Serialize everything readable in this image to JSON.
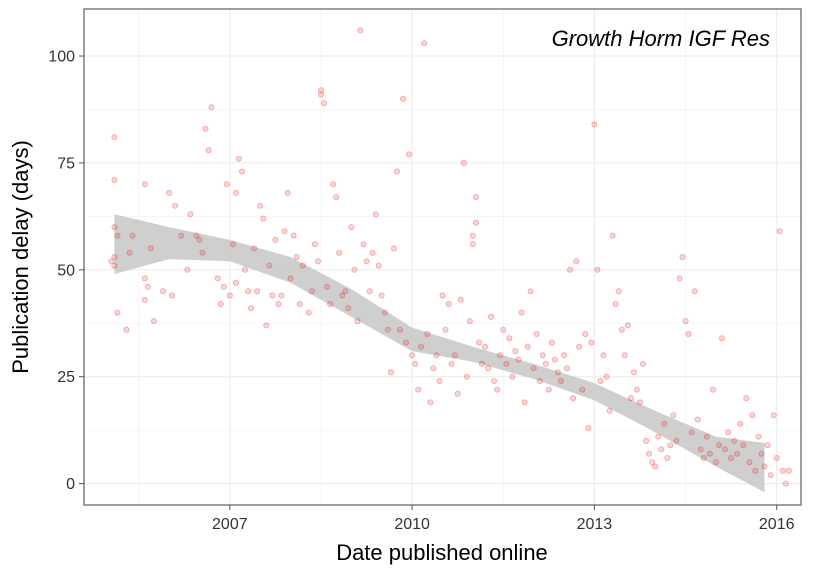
{
  "chart_data": {
    "type": "scatter",
    "title": "",
    "annotation": "Growth Horm IGF Res",
    "xlabel": "Date published online",
    "ylabel": "Publication delay (days)",
    "xlim": [
      2004.6,
      2016.4
    ],
    "ylim": [
      -5,
      111
    ],
    "x_ticks": [
      2007,
      2010,
      2013,
      2016
    ],
    "x_tick_labels": [
      "2007",
      "2010",
      "2013",
      "2016"
    ],
    "y_ticks": [
      0,
      25,
      50,
      75,
      100
    ],
    "y_tick_labels": [
      "0",
      "25",
      "50",
      "75",
      "100"
    ],
    "grid": true,
    "legend": "none",
    "point_color": "#e41a1c",
    "band_color": "#cccccc",
    "smooth_band": {
      "x": [
        2005.1,
        2006.0,
        2007.0,
        2008.0,
        2009.0,
        2010.0,
        2011.0,
        2012.0,
        2013.0,
        2014.0,
        2015.0,
        2015.8
      ],
      "lower": [
        49,
        52.5,
        52,
        47,
        39,
        31,
        28.5,
        24.5,
        19.5,
        12,
        4,
        -2
      ],
      "upper": [
        63,
        60,
        57,
        53,
        45.5,
        36.5,
        32,
        28,
        23.5,
        17,
        11,
        9.5
      ]
    },
    "points": [
      [
        2005.1,
        81
      ],
      [
        2005.1,
        71
      ],
      [
        2005.1,
        60
      ],
      [
        2005.15,
        58
      ],
      [
        2005.1,
        53
      ],
      [
        2005.05,
        52
      ],
      [
        2005.1,
        51
      ],
      [
        2005.15,
        40
      ],
      [
        2005.3,
        36
      ],
      [
        2005.4,
        58
      ],
      [
        2005.35,
        54
      ],
      [
        2005.6,
        70
      ],
      [
        2005.7,
        55
      ],
      [
        2005.6,
        48
      ],
      [
        2005.65,
        46
      ],
      [
        2005.6,
        43
      ],
      [
        2005.75,
        38
      ],
      [
        2005.9,
        45
      ],
      [
        2006.0,
        68
      ],
      [
        2006.1,
        65
      ],
      [
        2006.05,
        44
      ],
      [
        2006.2,
        58
      ],
      [
        2006.3,
        50
      ],
      [
        2006.35,
        63
      ],
      [
        2006.45,
        58
      ],
      [
        2006.5,
        57
      ],
      [
        2006.55,
        54
      ],
      [
        2006.6,
        83
      ],
      [
        2006.65,
        78
      ],
      [
        2006.7,
        88
      ],
      [
        2006.8,
        48
      ],
      [
        2006.85,
        42
      ],
      [
        2006.9,
        46
      ],
      [
        2006.95,
        70
      ],
      [
        2007.0,
        44
      ],
      [
        2007.05,
        56
      ],
      [
        2007.1,
        47
      ],
      [
        2007.1,
        68
      ],
      [
        2007.15,
        76
      ],
      [
        2007.2,
        73
      ],
      [
        2007.25,
        50
      ],
      [
        2007.3,
        45
      ],
      [
        2007.35,
        41
      ],
      [
        2007.4,
        55
      ],
      [
        2007.45,
        45
      ],
      [
        2007.5,
        65
      ],
      [
        2007.55,
        62
      ],
      [
        2007.6,
        37
      ],
      [
        2007.65,
        51
      ],
      [
        2007.7,
        44
      ],
      [
        2007.75,
        57
      ],
      [
        2007.8,
        42
      ],
      [
        2007.85,
        44
      ],
      [
        2007.9,
        59
      ],
      [
        2007.95,
        68
      ],
      [
        2008.0,
        48
      ],
      [
        2008.05,
        58
      ],
      [
        2008.1,
        53
      ],
      [
        2008.15,
        42
      ],
      [
        2008.2,
        51
      ],
      [
        2008.3,
        40
      ],
      [
        2008.35,
        45
      ],
      [
        2008.4,
        56
      ],
      [
        2008.45,
        52
      ],
      [
        2008.5,
        91
      ],
      [
        2008.5,
        92
      ],
      [
        2008.55,
        89
      ],
      [
        2008.6,
        46
      ],
      [
        2008.65,
        42
      ],
      [
        2008.7,
        70
      ],
      [
        2008.75,
        67
      ],
      [
        2008.8,
        54
      ],
      [
        2008.85,
        44
      ],
      [
        2008.9,
        45
      ],
      [
        2008.95,
        41
      ],
      [
        2009.0,
        60
      ],
      [
        2009.05,
        50
      ],
      [
        2009.1,
        38
      ],
      [
        2009.15,
        106
      ],
      [
        2009.2,
        56
      ],
      [
        2009.25,
        52
      ],
      [
        2009.3,
        45
      ],
      [
        2009.35,
        54
      ],
      [
        2009.4,
        63
      ],
      [
        2009.45,
        51
      ],
      [
        2009.5,
        44
      ],
      [
        2009.55,
        40
      ],
      [
        2009.6,
        36
      ],
      [
        2009.65,
        26
      ],
      [
        2009.7,
        55
      ],
      [
        2009.75,
        73
      ],
      [
        2009.8,
        36
      ],
      [
        2009.85,
        90
      ],
      [
        2009.9,
        33
      ],
      [
        2009.95,
        77
      ],
      [
        2010.0,
        30
      ],
      [
        2010.05,
        28
      ],
      [
        2010.1,
        22
      ],
      [
        2010.15,
        32
      ],
      [
        2010.2,
        103
      ],
      [
        2010.25,
        35
      ],
      [
        2010.3,
        19
      ],
      [
        2010.35,
        27
      ],
      [
        2010.4,
        30
      ],
      [
        2010.45,
        24
      ],
      [
        2010.5,
        44
      ],
      [
        2010.55,
        36
      ],
      [
        2010.6,
        42
      ],
      [
        2010.65,
        28
      ],
      [
        2010.7,
        30
      ],
      [
        2010.75,
        21
      ],
      [
        2010.8,
        43
      ],
      [
        2010.85,
        75
      ],
      [
        2010.9,
        25
      ],
      [
        2010.95,
        38
      ],
      [
        2011.0,
        56
      ],
      [
        2011.0,
        58
      ],
      [
        2011.05,
        61
      ],
      [
        2011.05,
        67
      ],
      [
        2011.1,
        33
      ],
      [
        2011.15,
        28
      ],
      [
        2011.2,
        32
      ],
      [
        2011.25,
        27
      ],
      [
        2011.3,
        39
      ],
      [
        2011.35,
        24
      ],
      [
        2011.4,
        22
      ],
      [
        2011.45,
        30
      ],
      [
        2011.5,
        36
      ],
      [
        2011.55,
        28
      ],
      [
        2011.6,
        34
      ],
      [
        2011.65,
        25
      ],
      [
        2011.7,
        31
      ],
      [
        2011.75,
        29
      ],
      [
        2011.8,
        40
      ],
      [
        2011.85,
        19
      ],
      [
        2011.9,
        32
      ],
      [
        2011.95,
        45
      ],
      [
        2012.0,
        27
      ],
      [
        2012.05,
        35
      ],
      [
        2012.1,
        24
      ],
      [
        2012.15,
        30
      ],
      [
        2012.2,
        28
      ],
      [
        2012.25,
        22
      ],
      [
        2012.3,
        33
      ],
      [
        2012.35,
        29
      ],
      [
        2012.4,
        26
      ],
      [
        2012.45,
        24
      ],
      [
        2012.5,
        30
      ],
      [
        2012.55,
        27
      ],
      [
        2012.6,
        50
      ],
      [
        2012.65,
        20
      ],
      [
        2012.7,
        52
      ],
      [
        2012.75,
        32
      ],
      [
        2012.8,
        22
      ],
      [
        2012.85,
        35
      ],
      [
        2012.9,
        13
      ],
      [
        2012.95,
        33
      ],
      [
        2013.0,
        84
      ],
      [
        2013.05,
        50
      ],
      [
        2013.1,
        24
      ],
      [
        2013.15,
        30
      ],
      [
        2013.2,
        25
      ],
      [
        2013.25,
        17
      ],
      [
        2013.3,
        58
      ],
      [
        2013.35,
        42
      ],
      [
        2013.4,
        45
      ],
      [
        2013.45,
        36
      ],
      [
        2013.5,
        30
      ],
      [
        2013.55,
        37
      ],
      [
        2013.6,
        20
      ],
      [
        2013.65,
        26
      ],
      [
        2013.7,
        22
      ],
      [
        2013.75,
        19
      ],
      [
        2013.8,
        28
      ],
      [
        2013.85,
        10
      ],
      [
        2013.9,
        7
      ],
      [
        2013.95,
        5
      ],
      [
        2014.0,
        4
      ],
      [
        2014.05,
        11
      ],
      [
        2014.1,
        8
      ],
      [
        2014.15,
        14
      ],
      [
        2014.2,
        6
      ],
      [
        2014.25,
        9
      ],
      [
        2014.3,
        16
      ],
      [
        2014.35,
        10
      ],
      [
        2014.4,
        48
      ],
      [
        2014.45,
        53
      ],
      [
        2014.5,
        38
      ],
      [
        2014.55,
        35
      ],
      [
        2014.6,
        12
      ],
      [
        2014.65,
        45
      ],
      [
        2014.7,
        15
      ],
      [
        2014.75,
        8
      ],
      [
        2014.8,
        6
      ],
      [
        2014.85,
        11
      ],
      [
        2014.9,
        7
      ],
      [
        2014.95,
        22
      ],
      [
        2015.0,
        5
      ],
      [
        2015.05,
        9
      ],
      [
        2015.1,
        34
      ],
      [
        2015.15,
        8
      ],
      [
        2015.2,
        12
      ],
      [
        2015.25,
        6
      ],
      [
        2015.3,
        10
      ],
      [
        2015.35,
        7
      ],
      [
        2015.4,
        14
      ],
      [
        2015.45,
        9
      ],
      [
        2015.5,
        20
      ],
      [
        2015.55,
        5
      ],
      [
        2015.6,
        16
      ],
      [
        2015.65,
        3
      ],
      [
        2015.7,
        11
      ],
      [
        2015.75,
        7
      ],
      [
        2015.8,
        4
      ],
      [
        2015.85,
        9
      ],
      [
        2015.9,
        2
      ],
      [
        2015.95,
        16
      ],
      [
        2016.0,
        6
      ],
      [
        2016.05,
        59
      ],
      [
        2016.1,
        3
      ],
      [
        2016.15,
        0
      ],
      [
        2016.2,
        3
      ]
    ]
  }
}
